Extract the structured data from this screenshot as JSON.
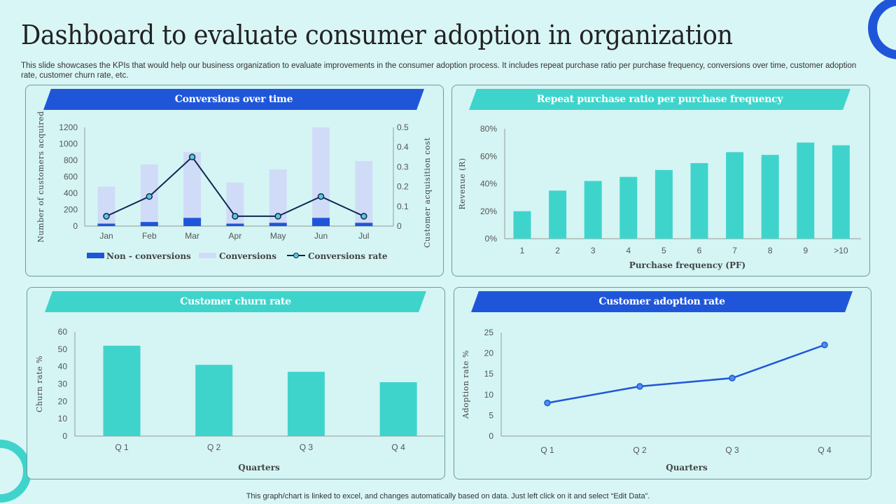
{
  "title": "Dashboard to evaluate consumer adoption in organization",
  "subtitle": "This slide showcases the KPIs that would help our business organization to evaluate improvements in the consumer adoption process. It includes repeat purchase ratio per purchase frequency, conversions over time, customer adoption rate, customer churn rate, etc.",
  "footer": "This graph/chart is linked to excel,  and changes automatically based on data. Just left click on it and select “Edit Data”.",
  "colors": {
    "blue": "#1f56d9",
    "teal": "#3fd4cb",
    "lavender": "#d0dcf7",
    "navy": "#0d2850",
    "bg": "#d8f6f5"
  },
  "chart_data": [
    {
      "type": "bar+line",
      "title": "Conversions over time",
      "categories": [
        "Jan",
        "Feb",
        "Mar",
        "Apr",
        "May",
        "Jun",
        "Jul"
      ],
      "ylabel": "Number of customers acquired",
      "y2label": "Customer acquisition cost",
      "ylim": [
        0,
        1200
      ],
      "y2lim": [
        0,
        0.5
      ],
      "yticks": [
        "0",
        "200",
        "400",
        "600",
        "800",
        "1000",
        "1200"
      ],
      "y2ticks": [
        "0",
        "0.1",
        "0.2",
        "0.3",
        "0.4",
        "0.5"
      ],
      "series": [
        {
          "name": "Non - conversions",
          "values": [
            30,
            50,
            100,
            30,
            40,
            100,
            40
          ]
        },
        {
          "name": "Conversions",
          "values": [
            480,
            750,
            900,
            530,
            690,
            1200,
            790
          ]
        },
        {
          "name": "Conversions rate",
          "axis": "secondary",
          "values": [
            0.05,
            0.15,
            0.35,
            0.05,
            0.05,
            0.15,
            0.05
          ]
        }
      ]
    },
    {
      "type": "bar",
      "title": "Repeat purchase ratio per purchase frequency",
      "categories": [
        "1",
        "2",
        "3",
        "4",
        "5",
        "6",
        "7",
        "8",
        "9",
        ">10"
      ],
      "values": [
        20,
        35,
        42,
        45,
        50,
        55,
        63,
        61,
        70,
        68
      ],
      "ylabel": "Revenue (R)",
      "xlabel": "Purchase frequency (PF)",
      "ylim": [
        0,
        80
      ],
      "yticks": [
        "0%",
        "20%",
        "40%",
        "60%",
        "80%"
      ]
    },
    {
      "type": "bar",
      "title": "Customer churn rate",
      "categories": [
        "Q 1",
        "Q 2",
        "Q 3",
        "Q 4"
      ],
      "values": [
        52,
        41,
        37,
        31
      ],
      "ylabel": "Churn rate %",
      "xlabel": "Quarters",
      "ylim": [
        0,
        60
      ],
      "yticks": [
        "0",
        "10",
        "20",
        "30",
        "40",
        "50",
        "60"
      ]
    },
    {
      "type": "line",
      "title": "Customer adoption rate",
      "categories": [
        "Q 1",
        "Q 2",
        "Q 3",
        "Q 4"
      ],
      "values": [
        8,
        12,
        14,
        22
      ],
      "ylabel": "Adoption rate %",
      "xlabel": "Quarters",
      "ylim": [
        0,
        25
      ],
      "yticks": [
        "0",
        "5",
        "10",
        "15",
        "20",
        "25"
      ]
    }
  ]
}
